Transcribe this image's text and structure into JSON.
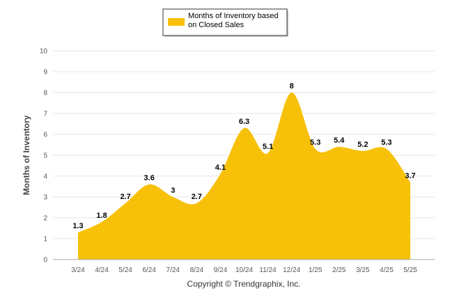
{
  "legend": {
    "line1": "Months of Inventory based",
    "line2": "on Closed Sales",
    "color": "#f7c10a"
  },
  "footer": "Copyright © Trendgraphix, Inc.",
  "chart_data": {
    "type": "area",
    "categories": [
      "3/24",
      "4/24",
      "5/24",
      "6/24",
      "7/24",
      "8/24",
      "9/24",
      "10/24",
      "11/24",
      "12/24",
      "1/25",
      "2/25",
      "3/25",
      "4/25",
      "5/25"
    ],
    "series": [
      {
        "name": "Months of Inventory based on Closed Sales",
        "values": [
          1.3,
          1.8,
          2.7,
          3.6,
          3,
          2.7,
          4.1,
          6.3,
          5.1,
          8,
          5.3,
          5.4,
          5.2,
          5.3,
          3.7
        ],
        "labels": [
          "1.3",
          "1.8",
          "2.7",
          "3.6",
          "3",
          "2.7",
          "4.1",
          "6.3",
          "5.1",
          "8",
          "5.3",
          "5.4",
          "5.2",
          "5.3",
          "3.7"
        ],
        "color": "#f7c10a"
      }
    ],
    "ylabel": "Months of Inventory",
    "ylim": [
      0,
      10
    ],
    "yticks": [
      "0",
      "1",
      "2",
      "3",
      "4",
      "5",
      "6",
      "7",
      "8",
      "9",
      "10"
    ],
    "grid": true,
    "legend_position": "top-center"
  }
}
